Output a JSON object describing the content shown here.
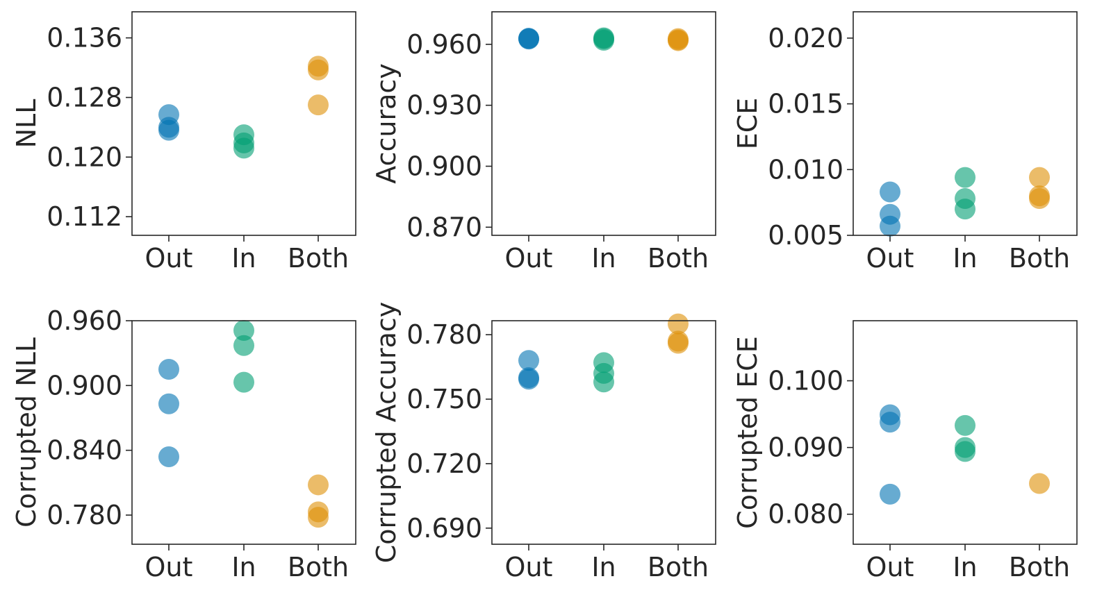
{
  "colors": {
    "Out": "#0173b2",
    "In": "#029e73",
    "Both": "#de8f05"
  },
  "chart_data": [
    {
      "type": "scatter",
      "ylabel": "NLL",
      "categories": [
        "Out",
        "In",
        "Both"
      ],
      "ylim": [
        0.1095,
        0.1395
      ],
      "yticks": [
        0.112,
        0.12,
        0.128,
        0.136
      ],
      "yticklabels": [
        "0.112",
        "0.120",
        "0.128",
        "0.136"
      ],
      "points": {
        "Out": [
          0.1257,
          0.124,
          0.1236
        ],
        "In": [
          0.123,
          0.1219,
          0.1212
        ],
        "Both": [
          0.1322,
          0.1317,
          0.127
        ]
      }
    },
    {
      "type": "scatter",
      "ylabel": "Accuracy",
      "categories": [
        "Out",
        "In",
        "Both"
      ],
      "ylim": [
        0.866,
        0.976
      ],
      "yticks": [
        0.87,
        0.9,
        0.93,
        0.96
      ],
      "yticklabels": [
        "0.870",
        "0.900",
        "0.930",
        "0.960"
      ],
      "points": {
        "Out": [
          0.963,
          0.9628,
          0.9626
        ],
        "In": [
          0.9632,
          0.9627,
          0.962
        ],
        "Both": [
          0.9628,
          0.9622,
          0.9618
        ]
      }
    },
    {
      "type": "scatter",
      "ylabel": "ECE",
      "categories": [
        "Out",
        "In",
        "Both"
      ],
      "ylim": [
        0.005,
        0.022
      ],
      "yticks": [
        0.005,
        0.01,
        0.015,
        0.02
      ],
      "yticklabels": [
        "0.005",
        "0.010",
        "0.015",
        "0.020"
      ],
      "points": {
        "Out": [
          0.0083,
          0.0066,
          0.0057
        ],
        "In": [
          0.0094,
          0.0078,
          0.007
        ],
        "Both": [
          0.0094,
          0.008,
          0.0078
        ]
      }
    },
    {
      "type": "scatter",
      "ylabel": "Corrupted NLL",
      "categories": [
        "Out",
        "In",
        "Both"
      ],
      "ylim": [
        0.753,
        0.96
      ],
      "yticks": [
        0.78,
        0.84,
        0.9,
        0.96
      ],
      "yticklabels": [
        "0.780",
        "0.840",
        "0.900",
        "0.960"
      ],
      "points": {
        "Out": [
          0.915,
          0.883,
          0.834
        ],
        "In": [
          0.951,
          0.937,
          0.903
        ],
        "Both": [
          0.808,
          0.783,
          0.778
        ]
      }
    },
    {
      "type": "scatter",
      "ylabel": "Corrupted Accuracy",
      "categories": [
        "Out",
        "In",
        "Both"
      ],
      "ylim": [
        0.6825,
        0.7865
      ],
      "yticks": [
        0.69,
        0.72,
        0.75,
        0.78
      ],
      "yticklabels": [
        "0.690",
        "0.720",
        "0.750",
        "0.780"
      ],
      "points": {
        "Out": [
          0.768,
          0.76,
          0.7593
        ],
        "In": [
          0.767,
          0.762,
          0.758
        ],
        "Both": [
          0.785,
          0.777,
          0.776
        ]
      }
    },
    {
      "type": "scatter",
      "ylabel": "Corrupted ECE",
      "categories": [
        "Out",
        "In",
        "Both"
      ],
      "ylim": [
        0.0755,
        0.109
      ],
      "yticks": [
        0.08,
        0.09,
        0.1
      ],
      "yticklabels": [
        "0.080",
        "0.090",
        "0.100"
      ],
      "points": {
        "Out": [
          0.0949,
          0.0938,
          0.083
        ],
        "In": [
          0.0933,
          0.09,
          0.0894
        ],
        "Both": [
          0.0846
        ]
      }
    }
  ]
}
